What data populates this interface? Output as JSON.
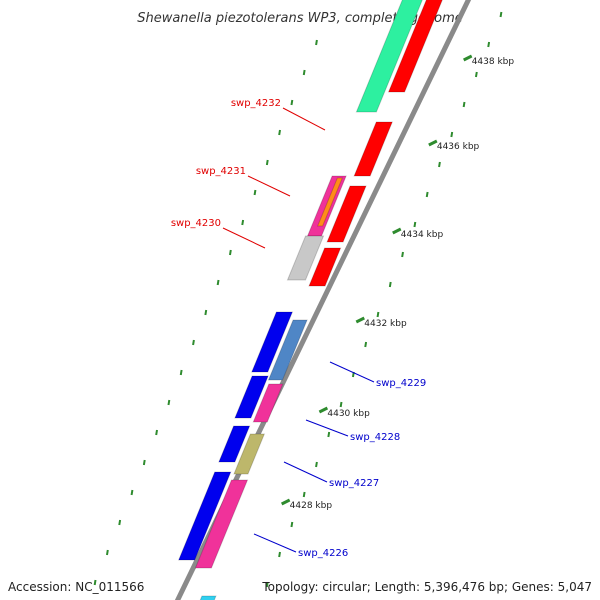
{
  "title": "Shewanella piezotolerans WP3, complete genome",
  "footer": {
    "accession": "Accession: NC_011566",
    "summary": "Topology: circular; Length: 5,396,476 bp; Genes: 5,047"
  },
  "colors": {
    "backbone": "#8a8a8a",
    "tick": "#2e8b2e",
    "label_red": "#e00000",
    "label_blue": "#0000cc",
    "red": "#ff0000",
    "blue": "#0000ee",
    "steelblue": "#4f86c6",
    "pink": "#f0329a",
    "khaki": "#bdb76b",
    "teal": "#2df0a0",
    "grey": "#c8c8c8",
    "cyan": "#30d0f0",
    "orange": "#ff8c1a"
  },
  "tick_labels": [
    "4438 kbp",
    "4436 kbp",
    "4434 kbp",
    "4432 kbp",
    "4430 kbp",
    "4428 kbp"
  ],
  "gene_labels": {
    "red": [
      "swp_4232",
      "swp_4231",
      "swp_4230"
    ],
    "blue": [
      "swp_4229",
      "swp_4228",
      "swp_4227",
      "swp_4226"
    ]
  }
}
